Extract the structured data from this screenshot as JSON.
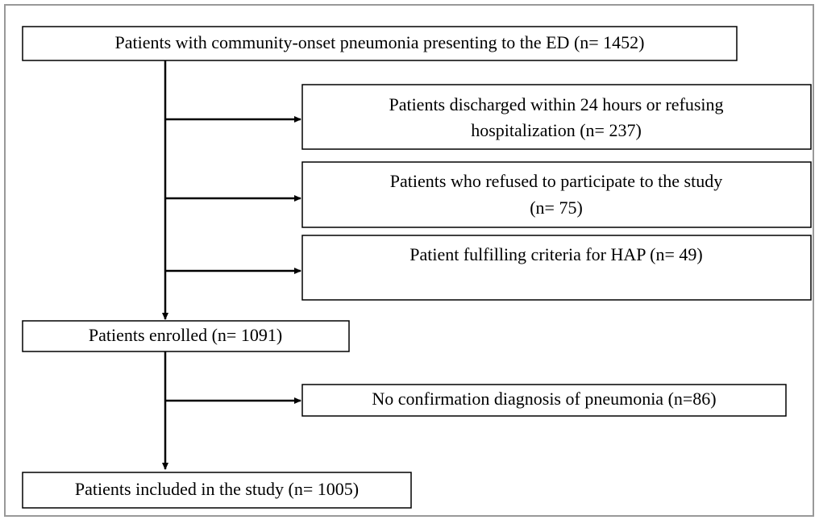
{
  "nodes": [
    {
      "lines": [
        "Patients with community-onset pneumonia presenting to the ED (n= 1452)"
      ]
    },
    {
      "lines": [
        "Patients discharged within 24 hours or refusing",
        "hospitalization (n= 237)"
      ]
    },
    {
      "lines": [
        "Patients who refused to participate to the study",
        "(n= 75)"
      ]
    },
    {
      "lines": [
        "Patient fulfilling criteria for HAP (n= 49)"
      ]
    },
    {
      "lines": [
        "Patients enrolled (n= 1091)"
      ]
    },
    {
      "lines": [
        "No confirmation diagnosis of pneumonia (n=86)"
      ]
    },
    {
      "lines": [
        "Patients included in the study (n= 1005)"
      ]
    }
  ]
}
